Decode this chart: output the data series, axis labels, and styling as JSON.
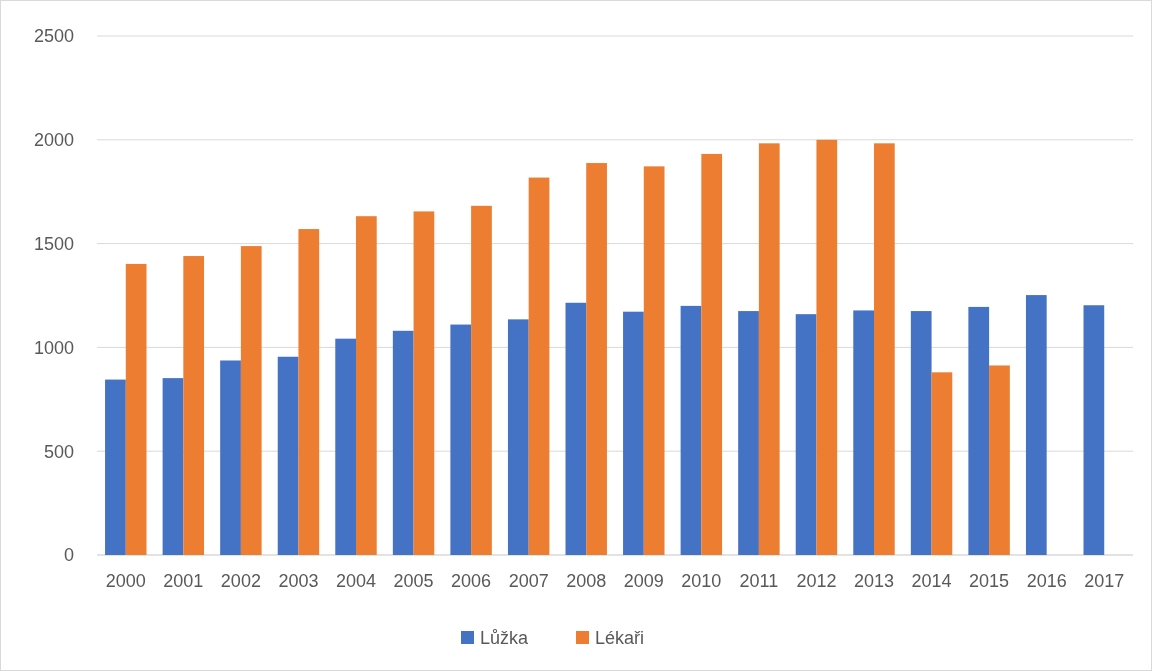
{
  "chart_data": {
    "type": "bar",
    "categories": [
      "2000",
      "2001",
      "2002",
      "2003",
      "2004",
      "2005",
      "2006",
      "2007",
      "2008",
      "2009",
      "2010",
      "2011",
      "2012",
      "2013",
      "2014",
      "2015",
      "2016",
      "2017"
    ],
    "series": [
      {
        "name": "Lůžka",
        "color": "#4472c4",
        "values": [
          845,
          852,
          937,
          955,
          1042,
          1080,
          1110,
          1135,
          1215,
          1172,
          1200,
          1175,
          1160,
          1178,
          1175,
          1195,
          1252,
          1203
        ]
      },
      {
        "name": "Lékaři",
        "color": "#ed7d31",
        "values": [
          1402,
          1440,
          1488,
          1570,
          1632,
          1655,
          1682,
          1818,
          1888,
          1872,
          1932,
          1983,
          2000,
          1983,
          880,
          913,
          null,
          null
        ]
      }
    ],
    "ylim": [
      0,
      2500
    ],
    "yticks": [
      0,
      500,
      1000,
      1500,
      2000,
      2500
    ],
    "grid": "y",
    "legend": "bottom"
  }
}
